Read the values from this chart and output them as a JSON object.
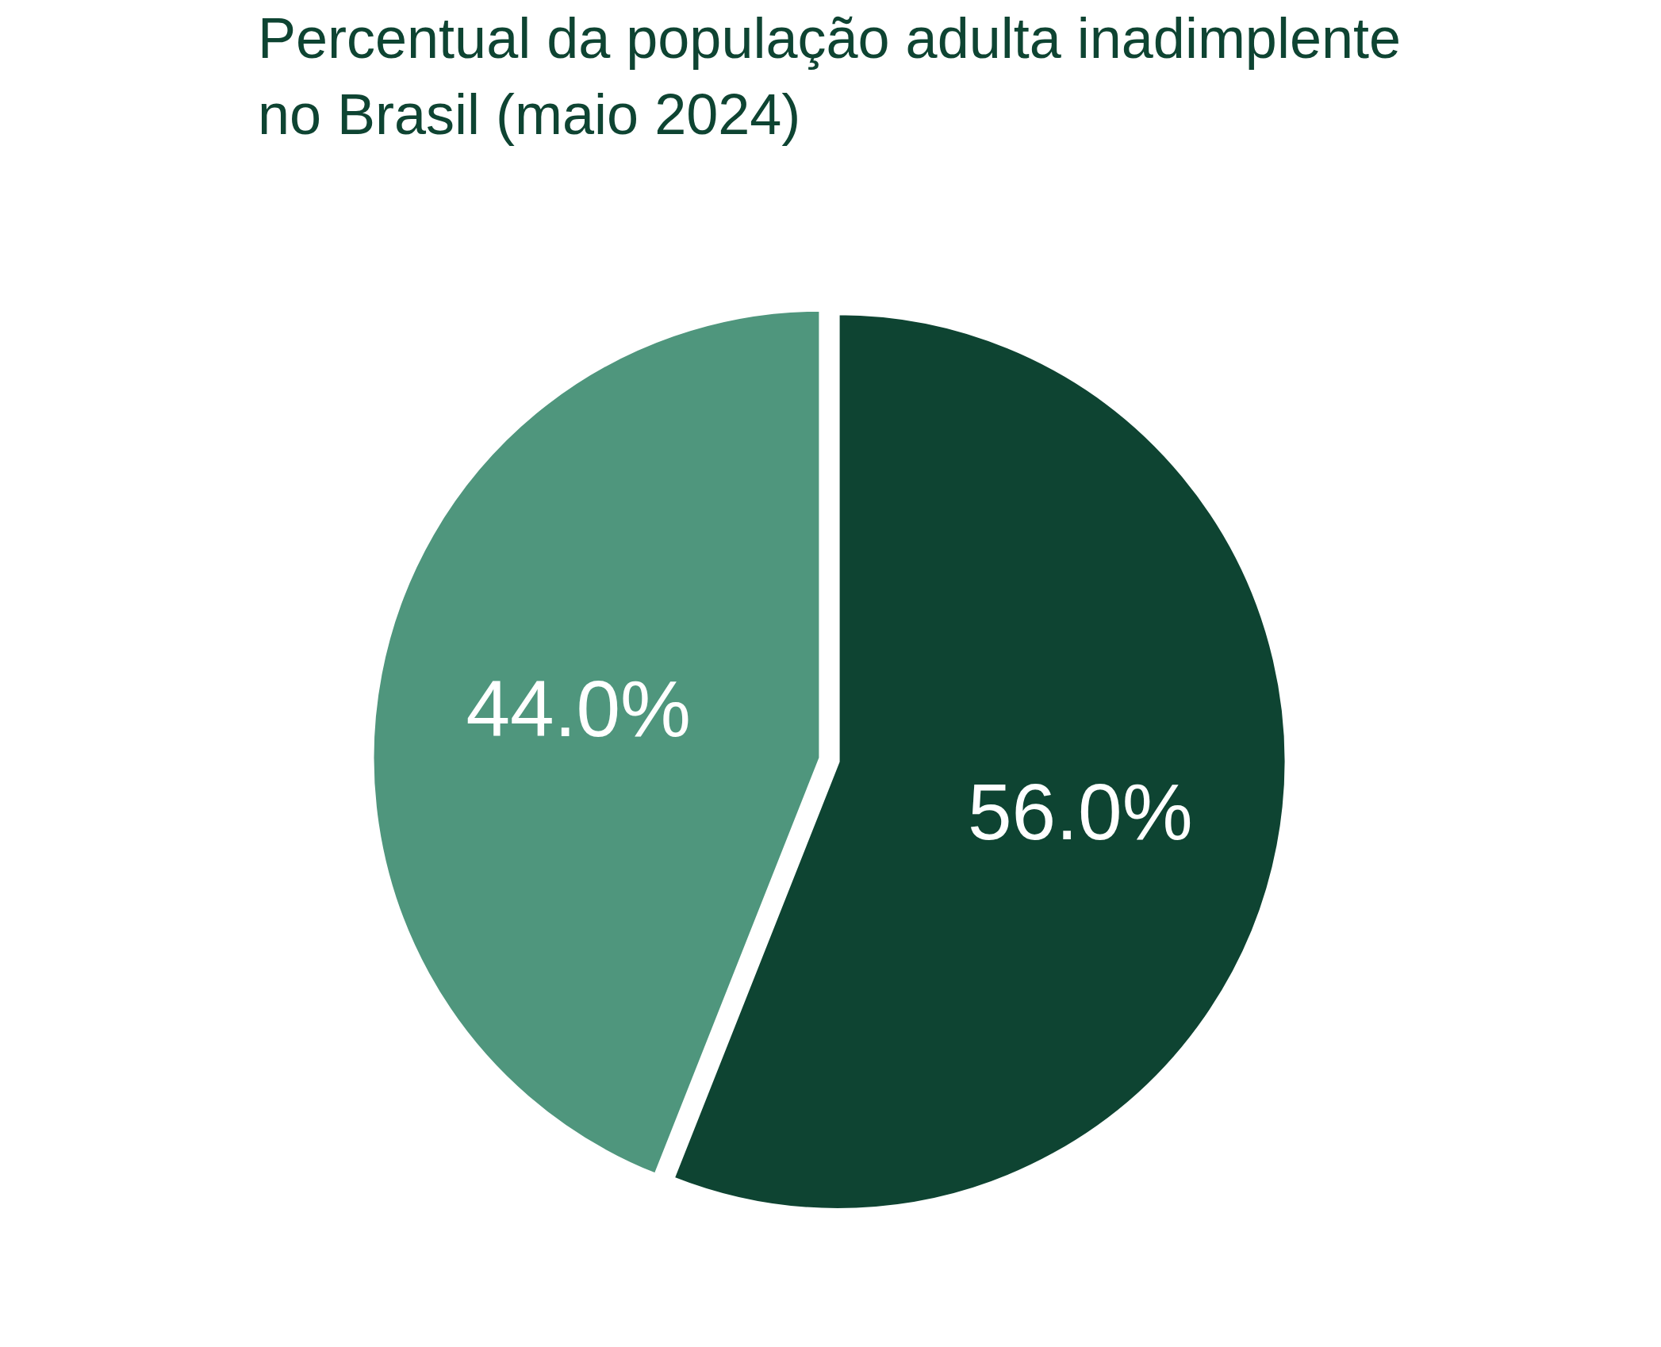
{
  "chart_data": {
    "type": "pie",
    "title": "Percentual da população adulta inadimplente\nno Brasil (maio 2024)",
    "categories": [
      null,
      null
    ],
    "values": [
      56.0,
      44.0
    ],
    "colors": [
      "#0e4432",
      "#4f967d"
    ],
    "value_labels": [
      "56.0%",
      "44.0%"
    ]
  }
}
